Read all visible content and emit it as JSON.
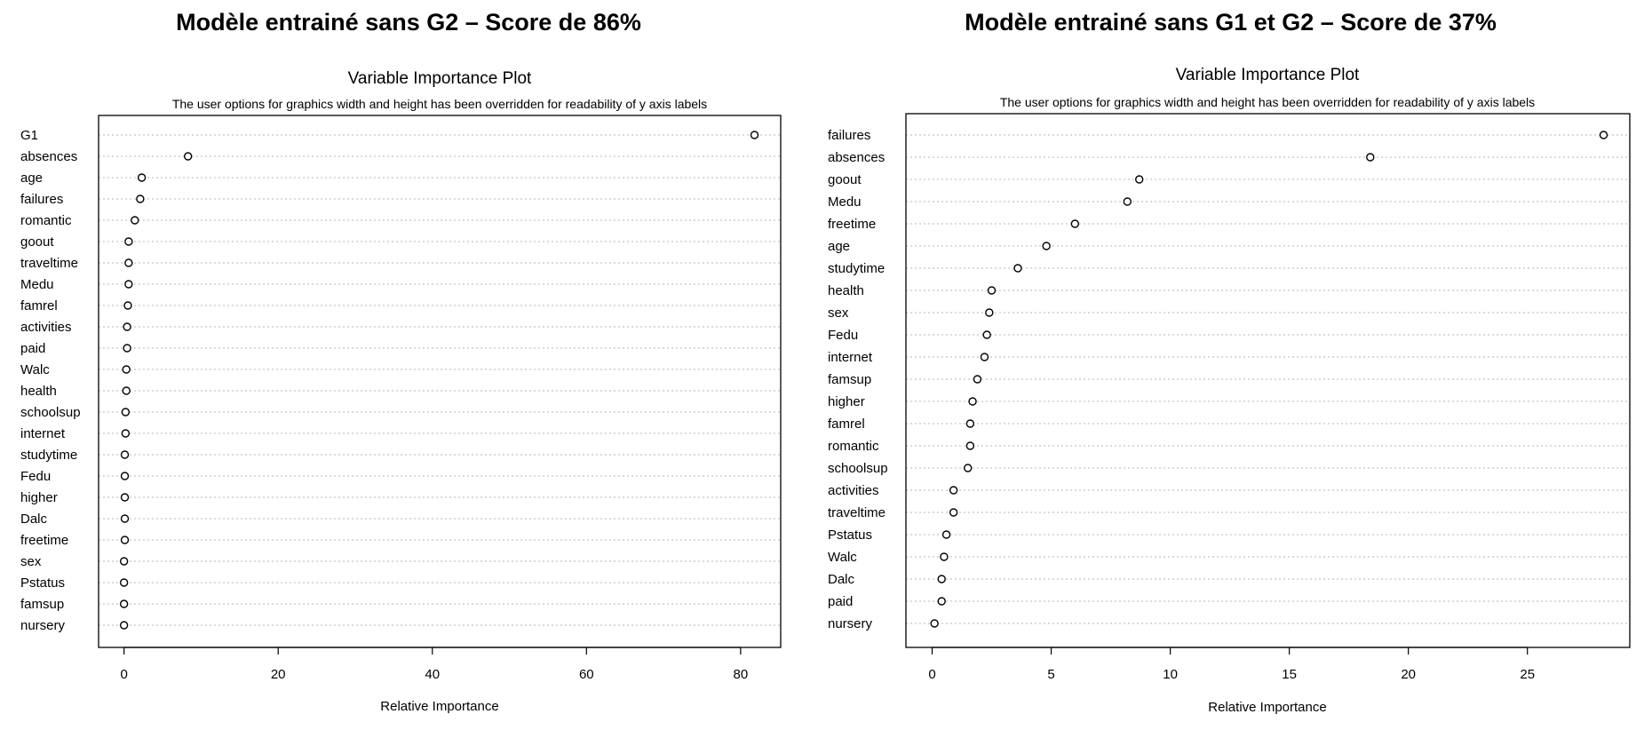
{
  "chart_data": [
    {
      "type": "scatter",
      "main_title": "Modèle entrainé sans G2 – Score de 86%",
      "title": "Variable Importance Plot",
      "subtitle": "The user options for graphics width and height has been overridden for readability of y axis labels",
      "xlabel": "Relative Importance",
      "ylabel": "",
      "xlim": [
        -3.3,
        85.2
      ],
      "xticks": [
        "0",
        "20",
        "40",
        "60",
        "80"
      ],
      "grid": "horizontal dotted",
      "categories": [
        "G1",
        "absences",
        "age",
        "failures",
        "romantic",
        "goout",
        "traveltime",
        "Medu",
        "famrel",
        "activities",
        "paid",
        "Walc",
        "health",
        "schoolsup",
        "internet",
        "studytime",
        "Fedu",
        "higher",
        "Dalc",
        "freetime",
        "sex",
        "Pstatus",
        "famsup",
        "nursery"
      ],
      "values": [
        81.8,
        8.3,
        2.3,
        2.1,
        1.4,
        0.6,
        0.6,
        0.6,
        0.5,
        0.4,
        0.4,
        0.3,
        0.3,
        0.2,
        0.2,
        0.1,
        0.1,
        0.1,
        0.1,
        0.1,
        0.0,
        0.0,
        0.0,
        0.0
      ]
    },
    {
      "type": "scatter",
      "main_title": "Modèle entrainé sans G1 et G2 – Score de 37%",
      "title": "Variable Importance Plot",
      "subtitle": "The user options for graphics width and height has been overridden for readability of y axis labels",
      "xlabel": "Relative Importance",
      "ylabel": "",
      "xlim": [
        -1.1,
        29.3
      ],
      "xticks": [
        "0",
        "5",
        "10",
        "15",
        "20",
        "25"
      ],
      "grid": "horizontal dotted",
      "categories": [
        "failures",
        "absences",
        "goout",
        "Medu",
        "freetime",
        "age",
        "studytime",
        "health",
        "sex",
        "Fedu",
        "internet",
        "famsup",
        "higher",
        "famrel",
        "romantic",
        "schoolsup",
        "activities",
        "traveltime",
        "Pstatus",
        "Walc",
        "Dalc",
        "paid",
        "nursery"
      ],
      "values": [
        28.2,
        18.4,
        8.7,
        8.2,
        6.0,
        4.8,
        3.6,
        2.5,
        2.4,
        2.3,
        2.2,
        1.9,
        1.7,
        1.6,
        1.6,
        1.5,
        0.9,
        0.9,
        0.6,
        0.5,
        0.4,
        0.4,
        0.1
      ]
    }
  ]
}
